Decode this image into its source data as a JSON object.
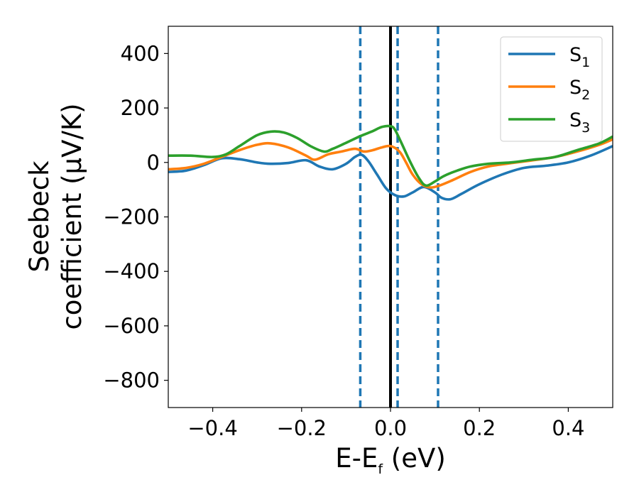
{
  "chart_data": {
    "type": "line",
    "xlabel": {
      "main": "E-E",
      "sub": "f",
      "rest": " (eV)"
    },
    "ylabel": {
      "line1": "Seebeck",
      "line2": "coefficient  (μV/K)"
    },
    "xlim": [
      -0.5,
      0.5
    ],
    "ylim": [
      -900,
      500
    ],
    "xticks": [
      -0.4,
      -0.2,
      0.0,
      0.2,
      0.4
    ],
    "xtick_labels": [
      "−0.4",
      "−0.2",
      "0.0",
      "0.2",
      "0.4"
    ],
    "yticks": [
      400,
      200,
      0,
      -200,
      -400,
      -600,
      -800
    ],
    "ytick_labels": [
      "400",
      "200",
      "0",
      "−200",
      "−400",
      "−600",
      "−800"
    ],
    "legend_position": "top-right",
    "grid": false,
    "vlines": [
      {
        "x": -0.068,
        "style": "dashed",
        "color": "#1f77b4"
      },
      {
        "x": 0.0,
        "style": "solid",
        "color": "#000000"
      },
      {
        "x": 0.016,
        "style": "dashed",
        "color": "#1f77b4"
      },
      {
        "x": 0.107,
        "style": "dashed",
        "color": "#1f77b4"
      }
    ],
    "series": [
      {
        "name": "S",
        "sub": "1",
        "color": "#1f77b4",
        "points": [
          [
            -0.5,
            -35
          ],
          [
            -0.46,
            -30
          ],
          [
            -0.42,
            -10
          ],
          [
            -0.38,
            15
          ],
          [
            -0.34,
            12
          ],
          [
            -0.3,
            0
          ],
          [
            -0.27,
            -5
          ],
          [
            -0.23,
            -2
          ],
          [
            -0.19,
            8
          ],
          [
            -0.16,
            -15
          ],
          [
            -0.13,
            -25
          ],
          [
            -0.1,
            -5
          ],
          [
            -0.08,
            20
          ],
          [
            -0.065,
            28
          ],
          [
            -0.05,
            5
          ],
          [
            -0.03,
            -45
          ],
          [
            -0.01,
            -95
          ],
          [
            0.01,
            -120
          ],
          [
            0.03,
            -125
          ],
          [
            0.05,
            -110
          ],
          [
            0.075,
            -90
          ],
          [
            0.1,
            -110
          ],
          [
            0.115,
            -130
          ],
          [
            0.135,
            -135
          ],
          [
            0.16,
            -115
          ],
          [
            0.2,
            -80
          ],
          [
            0.25,
            -45
          ],
          [
            0.3,
            -20
          ],
          [
            0.35,
            -12
          ],
          [
            0.4,
            0
          ],
          [
            0.45,
            25
          ],
          [
            0.5,
            60
          ]
        ]
      },
      {
        "name": "S",
        "sub": "2",
        "color": "#ff7f0e",
        "points": [
          [
            -0.5,
            -25
          ],
          [
            -0.46,
            -20
          ],
          [
            -0.42,
            -5
          ],
          [
            -0.38,
            20
          ],
          [
            -0.34,
            45
          ],
          [
            -0.3,
            65
          ],
          [
            -0.27,
            70
          ],
          [
            -0.23,
            55
          ],
          [
            -0.19,
            25
          ],
          [
            -0.17,
            10
          ],
          [
            -0.14,
            30
          ],
          [
            -0.11,
            40
          ],
          [
            -0.08,
            50
          ],
          [
            -0.06,
            40
          ],
          [
            -0.04,
            45
          ],
          [
            -0.02,
            55
          ],
          [
            0.0,
            60
          ],
          [
            0.02,
            40
          ],
          [
            0.035,
            0
          ],
          [
            0.05,
            -45
          ],
          [
            0.07,
            -80
          ],
          [
            0.09,
            -92
          ],
          [
            0.11,
            -85
          ],
          [
            0.14,
            -65
          ],
          [
            0.18,
            -35
          ],
          [
            0.22,
            -15
          ],
          [
            0.27,
            -3
          ],
          [
            0.32,
            8
          ],
          [
            0.37,
            20
          ],
          [
            0.42,
            40
          ],
          [
            0.47,
            65
          ],
          [
            0.5,
            85
          ]
        ]
      },
      {
        "name": "S",
        "sub": "3",
        "color": "#2ca02c",
        "points": [
          [
            -0.5,
            25
          ],
          [
            -0.45,
            25
          ],
          [
            -0.4,
            20
          ],
          [
            -0.37,
            30
          ],
          [
            -0.34,
            60
          ],
          [
            -0.3,
            100
          ],
          [
            -0.27,
            113
          ],
          [
            -0.24,
            110
          ],
          [
            -0.21,
            90
          ],
          [
            -0.18,
            60
          ],
          [
            -0.15,
            40
          ],
          [
            -0.13,
            50
          ],
          [
            -0.1,
            72
          ],
          [
            -0.07,
            95
          ],
          [
            -0.04,
            115
          ],
          [
            -0.02,
            130
          ],
          [
            0.0,
            133
          ],
          [
            0.01,
            120
          ],
          [
            0.025,
            70
          ],
          [
            0.045,
            0
          ],
          [
            0.065,
            -60
          ],
          [
            0.08,
            -85
          ],
          [
            0.1,
            -70
          ],
          [
            0.12,
            -50
          ],
          [
            0.15,
            -30
          ],
          [
            0.18,
            -15
          ],
          [
            0.22,
            -5
          ],
          [
            0.27,
            0
          ],
          [
            0.32,
            10
          ],
          [
            0.37,
            20
          ],
          [
            0.42,
            45
          ],
          [
            0.47,
            70
          ],
          [
            0.5,
            95
          ]
        ]
      }
    ]
  }
}
